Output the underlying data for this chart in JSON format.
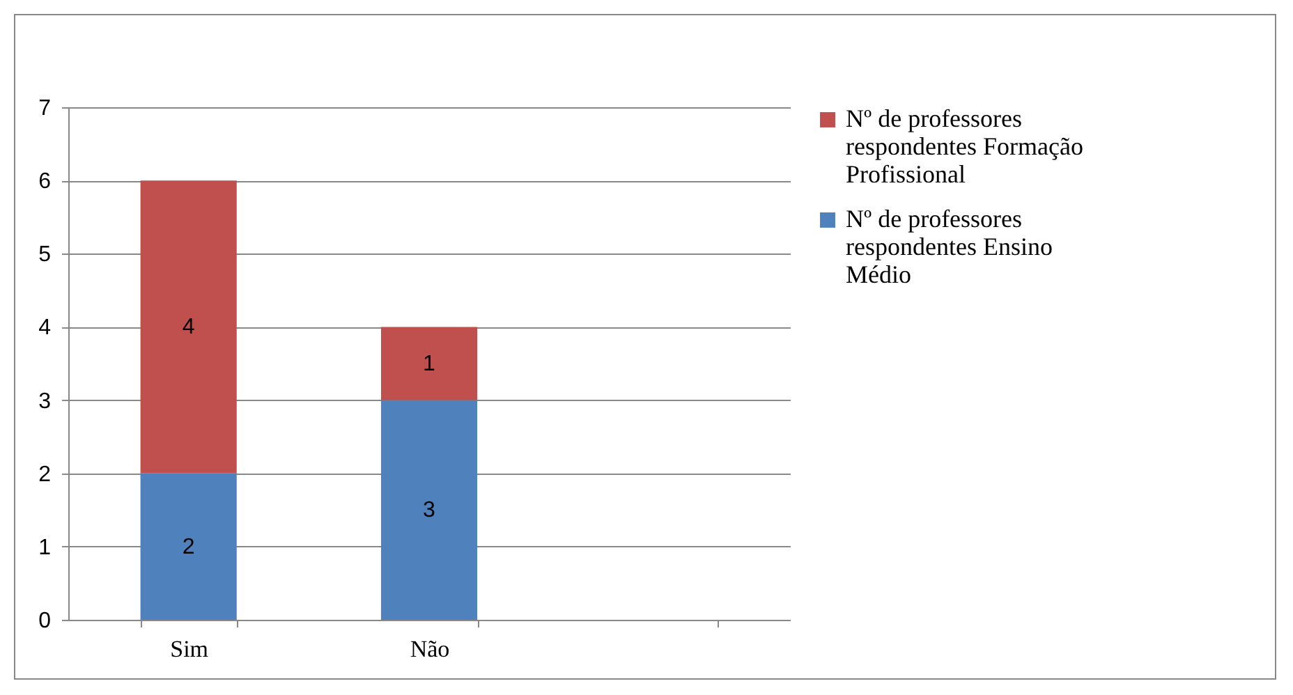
{
  "chart_data": {
    "type": "bar",
    "categories": [
      "Sim",
      "Não",
      null
    ],
    "stacked": true,
    "data_labels": true,
    "grid": "y",
    "legend": "right",
    "ylim": [
      0,
      7
    ],
    "yticks": [
      0,
      1,
      2,
      3,
      4,
      5,
      6,
      7
    ],
    "series": [
      {
        "name": "Nº de professores respondentes Ensino Médio",
        "color": "#4f81bd",
        "values": [
          2,
          3,
          null
        ]
      },
      {
        "name": "Nº de professores respondentes Formação Profissional",
        "color": "#c0504d",
        "values": [
          4,
          1,
          null
        ]
      }
    ]
  }
}
